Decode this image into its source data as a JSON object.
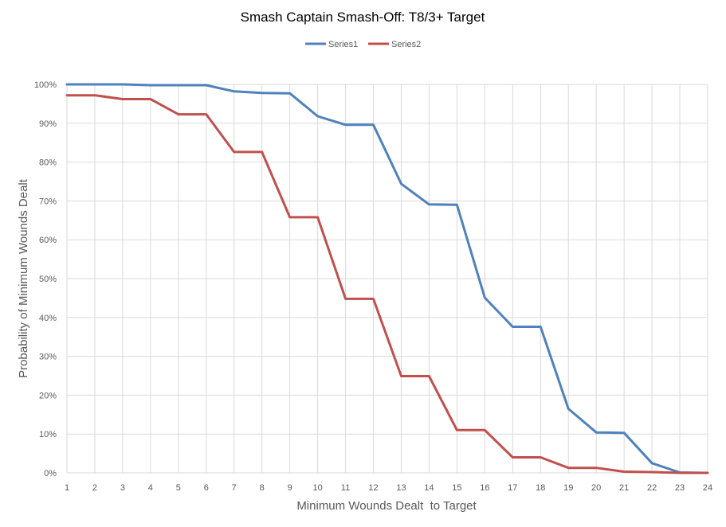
{
  "chart_data": {
    "type": "line",
    "title": "Smash Captain Smash-Off: T8/3+ Target",
    "xlabel": "Minimum Wounds Dealt  to Target",
    "ylabel": "Probability of Minimum Wounds Dealt",
    "x": [
      1,
      2,
      3,
      4,
      5,
      6,
      7,
      8,
      9,
      10,
      11,
      12,
      13,
      14,
      15,
      16,
      17,
      18,
      19,
      20,
      21,
      22,
      23,
      24
    ],
    "xlim": [
      1,
      24
    ],
    "ylim": [
      0,
      1
    ],
    "y_ticks": [
      "0%",
      "10%",
      "20%",
      "30%",
      "40%",
      "50%",
      "60%",
      "70%",
      "80%",
      "90%",
      "100%"
    ],
    "x_ticks": [
      "1",
      "2",
      "3",
      "4",
      "5",
      "6",
      "7",
      "8",
      "9",
      "10",
      "11",
      "12",
      "13",
      "14",
      "15",
      "16",
      "17",
      "18",
      "19",
      "20",
      "21",
      "22",
      "23",
      "24"
    ],
    "grid": true,
    "legend_position": "top",
    "series": [
      {
        "name": "Series1",
        "color": "#4f81bd",
        "values": [
          1.0,
          1.0,
          1.0,
          0.998,
          0.998,
          0.998,
          0.982,
          0.978,
          0.977,
          0.918,
          0.896,
          0.896,
          0.744,
          0.691,
          0.69,
          0.451,
          0.376,
          0.376,
          0.165,
          0.104,
          0.103,
          0.025,
          0.001,
          0.0
        ]
      },
      {
        "name": "Series2",
        "color": "#c0504d",
        "values": [
          0.972,
          0.972,
          0.962,
          0.962,
          0.923,
          0.923,
          0.826,
          0.826,
          0.658,
          0.658,
          0.448,
          0.448,
          0.249,
          0.249,
          0.11,
          0.11,
          0.04,
          0.04,
          0.013,
          0.013,
          0.003,
          0.002,
          0.0,
          0.0
        ]
      }
    ]
  }
}
